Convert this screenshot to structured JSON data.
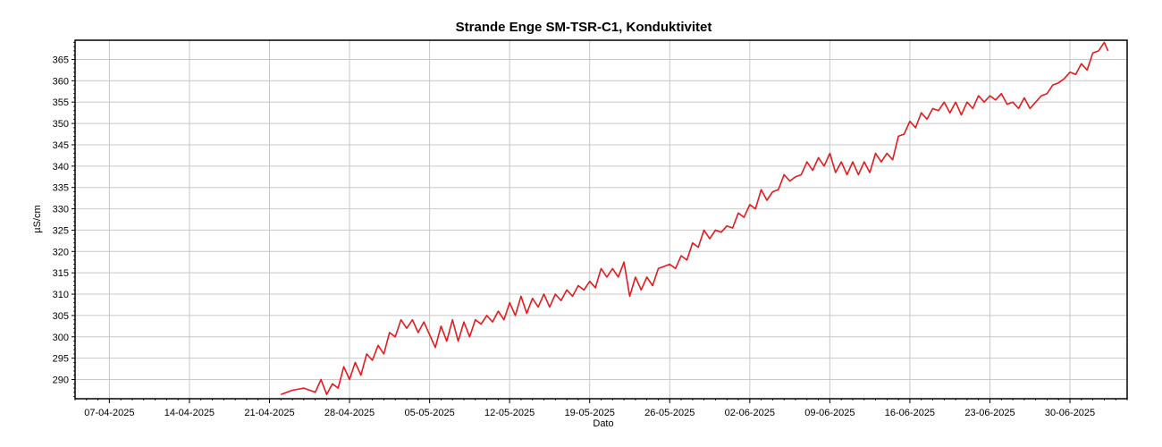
{
  "chart_data": {
    "type": "line",
    "title": "Strande Enge SM-TSR-C1, Konduktivitet",
    "xlabel": "Dato",
    "ylabel": "µS/cm",
    "x_tick_labels": [
      "07-04-2025",
      "14-04-2025",
      "21-04-2025",
      "28-04-2025",
      "05-05-2025",
      "12-05-2025",
      "19-05-2025",
      "26-05-2025",
      "02-06-2025",
      "09-06-2025",
      "16-06-2025",
      "23-06-2025",
      "30-06-2025"
    ],
    "y_ticks": [
      290,
      295,
      300,
      305,
      310,
      315,
      320,
      325,
      330,
      335,
      340,
      345,
      350,
      355,
      360,
      365
    ],
    "xlim": [
      "2025-04-04",
      "2025-07-05"
    ],
    "ylim": [
      285.5,
      369.5
    ],
    "grid": true,
    "legend": "none",
    "series": [
      {
        "color": "#e41a1c",
        "points": [
          [
            "2025-04-22",
            286.5
          ],
          [
            "2025-04-23",
            287.5
          ],
          [
            "2025-04-24",
            288.0
          ],
          [
            "2025-04-25",
            287.0
          ],
          [
            "2025-04-25T12",
            290.0
          ],
          [
            "2025-04-26",
            286.5
          ],
          [
            "2025-04-26T12",
            289.0
          ],
          [
            "2025-04-27",
            288.0
          ],
          [
            "2025-04-27T12",
            293.0
          ],
          [
            "2025-04-28",
            290.0
          ],
          [
            "2025-04-28T12",
            294.0
          ],
          [
            "2025-04-29",
            291.0
          ],
          [
            "2025-04-29T12",
            296.0
          ],
          [
            "2025-04-30",
            294.5
          ],
          [
            "2025-04-30T12",
            298.0
          ],
          [
            "2025-05-01",
            296.0
          ],
          [
            "2025-05-01T12",
            301.0
          ],
          [
            "2025-05-02",
            300.0
          ],
          [
            "2025-05-02T12",
            304.0
          ],
          [
            "2025-05-03",
            302.0
          ],
          [
            "2025-05-03T12",
            304.0
          ],
          [
            "2025-05-04",
            301.0
          ],
          [
            "2025-05-04T12",
            303.5
          ],
          [
            "2025-05-05",
            300.5
          ],
          [
            "2025-05-05T12",
            297.5
          ],
          [
            "2025-05-06",
            302.5
          ],
          [
            "2025-05-06T12",
            299.0
          ],
          [
            "2025-05-07",
            304.0
          ],
          [
            "2025-05-07T12",
            299.0
          ],
          [
            "2025-05-08",
            303.5
          ],
          [
            "2025-05-08T12",
            300.0
          ],
          [
            "2025-05-09",
            304.0
          ],
          [
            "2025-05-09T12",
            303.0
          ],
          [
            "2025-05-10",
            305.0
          ],
          [
            "2025-05-10T12",
            303.5
          ],
          [
            "2025-05-11",
            306.0
          ],
          [
            "2025-05-11T12",
            304.0
          ],
          [
            "2025-05-12",
            308.0
          ],
          [
            "2025-05-12T12",
            305.0
          ],
          [
            "2025-05-13",
            309.5
          ],
          [
            "2025-05-13T12",
            305.5
          ],
          [
            "2025-05-14",
            309.0
          ],
          [
            "2025-05-14T12",
            307.0
          ],
          [
            "2025-05-15",
            310.0
          ],
          [
            "2025-05-15T12",
            307.0
          ],
          [
            "2025-05-16",
            310.0
          ],
          [
            "2025-05-16T12",
            308.5
          ],
          [
            "2025-05-17",
            311.0
          ],
          [
            "2025-05-17T12",
            309.5
          ],
          [
            "2025-05-18",
            312.0
          ],
          [
            "2025-05-18T12",
            311.0
          ],
          [
            "2025-05-19",
            313.0
          ],
          [
            "2025-05-19T12",
            311.5
          ],
          [
            "2025-05-20",
            316.0
          ],
          [
            "2025-05-20T12",
            314.0
          ],
          [
            "2025-05-21",
            316.0
          ],
          [
            "2025-05-21T12",
            314.0
          ],
          [
            "2025-05-22",
            317.5
          ],
          [
            "2025-05-22T12",
            309.5
          ],
          [
            "2025-05-23",
            314.0
          ],
          [
            "2025-05-23T12",
            311.0
          ],
          [
            "2025-05-24",
            314.0
          ],
          [
            "2025-05-24T12",
            312.0
          ],
          [
            "2025-05-25",
            316.0
          ],
          [
            "2025-05-26",
            317.0
          ],
          [
            "2025-05-26T12",
            316.0
          ],
          [
            "2025-05-27",
            319.0
          ],
          [
            "2025-05-27T12",
            318.0
          ],
          [
            "2025-05-28",
            322.0
          ],
          [
            "2025-05-28T12",
            321.0
          ],
          [
            "2025-05-29",
            325.0
          ],
          [
            "2025-05-29T12",
            323.0
          ],
          [
            "2025-05-30",
            325.0
          ],
          [
            "2025-05-30T12",
            324.5
          ],
          [
            "2025-05-31",
            326.0
          ],
          [
            "2025-05-31T12",
            325.5
          ],
          [
            "2025-06-01",
            329.0
          ],
          [
            "2025-06-01T12",
            328.0
          ],
          [
            "2025-06-02",
            331.0
          ],
          [
            "2025-06-02T12",
            330.0
          ],
          [
            "2025-06-03",
            334.5
          ],
          [
            "2025-06-03T12",
            332.0
          ],
          [
            "2025-06-04",
            334.0
          ],
          [
            "2025-06-04T12",
            334.5
          ],
          [
            "2025-06-05",
            338.0
          ],
          [
            "2025-06-05T12",
            336.5
          ],
          [
            "2025-06-06",
            337.5
          ],
          [
            "2025-06-06T12",
            338.0
          ],
          [
            "2025-06-07",
            341.0
          ],
          [
            "2025-06-07T12",
            339.0
          ],
          [
            "2025-06-08",
            342.0
          ],
          [
            "2025-06-08T12",
            340.0
          ],
          [
            "2025-06-09",
            343.0
          ],
          [
            "2025-06-09T12",
            338.5
          ],
          [
            "2025-06-10",
            341.0
          ],
          [
            "2025-06-10T12",
            338.0
          ],
          [
            "2025-06-11",
            341.0
          ],
          [
            "2025-06-11T12",
            338.0
          ],
          [
            "2025-06-12",
            341.0
          ],
          [
            "2025-06-12T12",
            338.5
          ],
          [
            "2025-06-13",
            343.0
          ],
          [
            "2025-06-13T12",
            341.0
          ],
          [
            "2025-06-14",
            343.0
          ],
          [
            "2025-06-14T12",
            341.5
          ],
          [
            "2025-06-15",
            347.0
          ],
          [
            "2025-06-15T12",
            347.5
          ],
          [
            "2025-06-16",
            350.5
          ],
          [
            "2025-06-16T12",
            349.0
          ],
          [
            "2025-06-17",
            352.5
          ],
          [
            "2025-06-17T12",
            351.0
          ],
          [
            "2025-06-18",
            353.5
          ],
          [
            "2025-06-18T12",
            353.0
          ],
          [
            "2025-06-19",
            355.0
          ],
          [
            "2025-06-19T12",
            352.5
          ],
          [
            "2025-06-20",
            355.0
          ],
          [
            "2025-06-20T12",
            352.0
          ],
          [
            "2025-06-21",
            355.0
          ],
          [
            "2025-06-21T12",
            353.5
          ],
          [
            "2025-06-22",
            356.5
          ],
          [
            "2025-06-22T12",
            355.0
          ],
          [
            "2025-06-23",
            356.5
          ],
          [
            "2025-06-23T12",
            355.5
          ],
          [
            "2025-06-24",
            357.0
          ],
          [
            "2025-06-24T12",
            354.5
          ],
          [
            "2025-06-25",
            355.0
          ],
          [
            "2025-06-25T12",
            353.5
          ],
          [
            "2025-06-26",
            356.0
          ],
          [
            "2025-06-26T12",
            353.5
          ],
          [
            "2025-06-27",
            355.0
          ],
          [
            "2025-06-27T12",
            356.5
          ],
          [
            "2025-06-28",
            357.0
          ],
          [
            "2025-06-28T12",
            359.0
          ],
          [
            "2025-06-29",
            359.5
          ],
          [
            "2025-06-29T12",
            360.5
          ],
          [
            "2025-06-30",
            362.0
          ],
          [
            "2025-06-30T12",
            361.5
          ],
          [
            "2025-07-01",
            364.0
          ],
          [
            "2025-07-01T12",
            362.5
          ],
          [
            "2025-07-02",
            366.5
          ],
          [
            "2025-07-02T12",
            367.0
          ],
          [
            "2025-07-03",
            369.0
          ],
          [
            "2025-07-03T08",
            367.0
          ]
        ]
      }
    ]
  }
}
